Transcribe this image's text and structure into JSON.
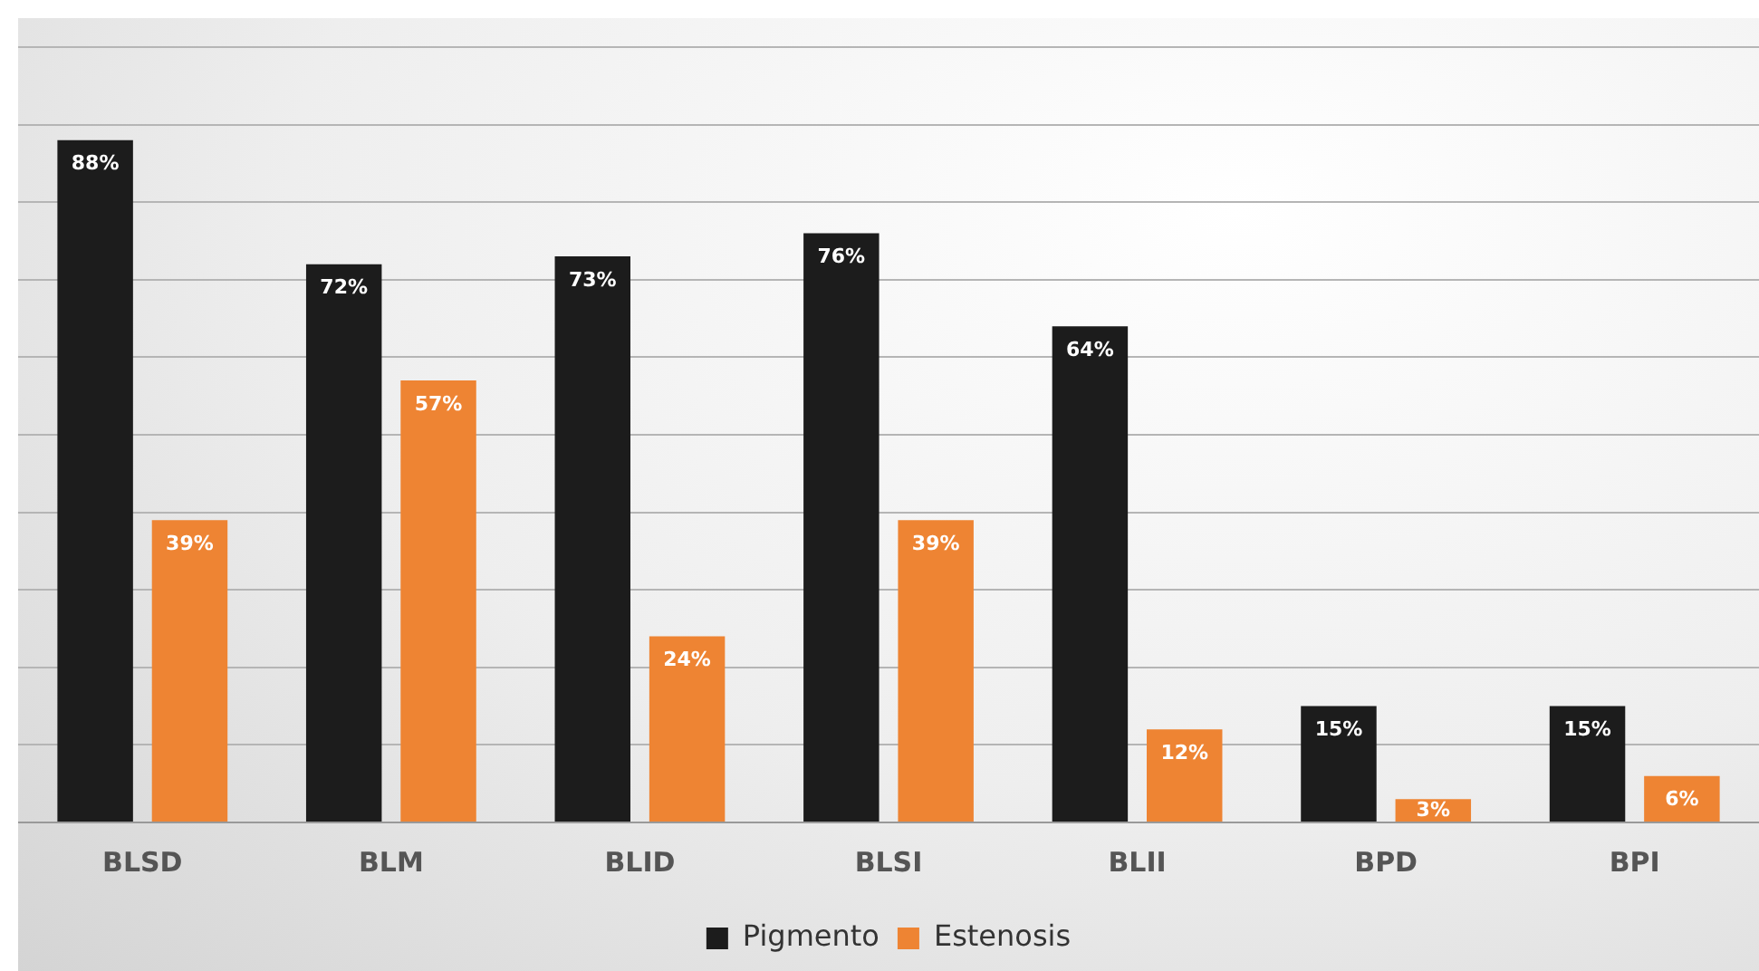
{
  "chart_data": {
    "type": "bar",
    "categories": [
      "BLSD",
      "BLM",
      "BLID",
      "BLSI",
      "BLII",
      "BPD",
      "BPI"
    ],
    "series": [
      {
        "name": "Pigmento",
        "color": "#1c1c1c",
        "values": [
          88,
          72,
          73,
          76,
          64,
          15,
          15
        ],
        "value_labels": [
          "88%",
          "72%",
          "73%",
          "76%",
          "64%",
          "15%",
          "15%"
        ]
      },
      {
        "name": "Estenosis",
        "color": "#ee8433",
        "values": [
          39,
          57,
          24,
          39,
          12,
          3,
          6
        ],
        "value_labels": [
          "39%",
          "57%",
          "24%",
          "39%",
          "12%",
          "3%",
          "6%"
        ]
      }
    ],
    "ylim": [
      0,
      100
    ],
    "yticks": [
      {
        "value": 0,
        "label": null
      },
      {
        "value": 10,
        "label": null
      },
      {
        "value": 20,
        "label": null
      },
      {
        "value": 30,
        "label": null
      },
      {
        "value": 40,
        "label": null
      },
      {
        "value": 50,
        "label": null
      },
      {
        "value": 60,
        "label": null
      },
      {
        "value": 70,
        "label": null
      },
      {
        "value": 80,
        "label": null
      },
      {
        "value": 90,
        "label": null
      },
      {
        "value": 100,
        "label": null
      }
    ],
    "tick_labels": "x",
    "grid": "y",
    "legend": "bottom"
  }
}
